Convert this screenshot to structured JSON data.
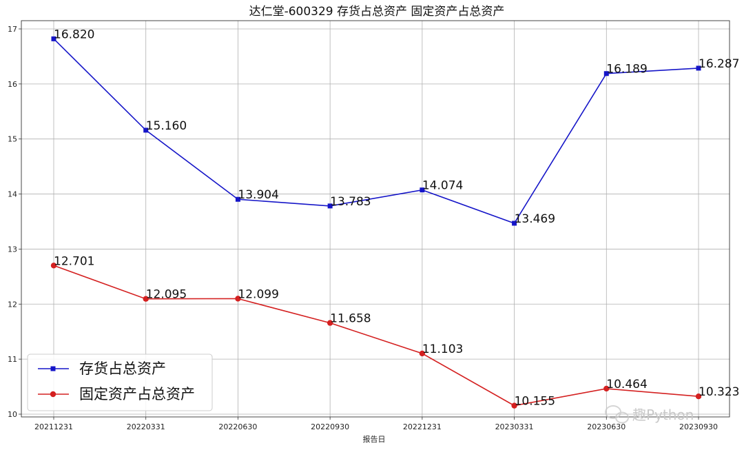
{
  "chart_data": {
    "type": "line",
    "title": "达仁堂-600329 存货占总资产 固定资产占总资产",
    "xlabel": "报告日",
    "ylabel": "",
    "categories": [
      "20211231",
      "20220331",
      "20220630",
      "20220930",
      "20221231",
      "20230331",
      "20230630",
      "20230930"
    ],
    "ylim": [
      9.95,
      17.15
    ],
    "yticks": [
      10,
      11,
      12,
      13,
      14,
      15,
      16,
      17
    ],
    "grid": true,
    "legend_position": "lower-left",
    "series": [
      {
        "name": "存货占总资产",
        "color": "#1515c8",
        "marker": "square",
        "values": [
          16.82,
          15.16,
          13.904,
          13.783,
          14.074,
          13.469,
          16.189,
          16.287
        ],
        "labels": [
          "16.820",
          "15.160",
          "13.904",
          "13.783",
          "14.074",
          "13.469",
          "16.189",
          "16.287"
        ]
      },
      {
        "name": "固定资产占总资产",
        "color": "#d42020",
        "marker": "circle",
        "values": [
          12.701,
          12.095,
          12.099,
          11.658,
          11.103,
          10.155,
          10.464,
          10.323
        ],
        "labels": [
          "12.701",
          "12.095",
          "12.099",
          "11.658",
          "11.103",
          "10.155",
          "10.464",
          "10.323"
        ]
      }
    ]
  },
  "watermark": {
    "text": "趣Python",
    "icon": "wechat-icon"
  }
}
